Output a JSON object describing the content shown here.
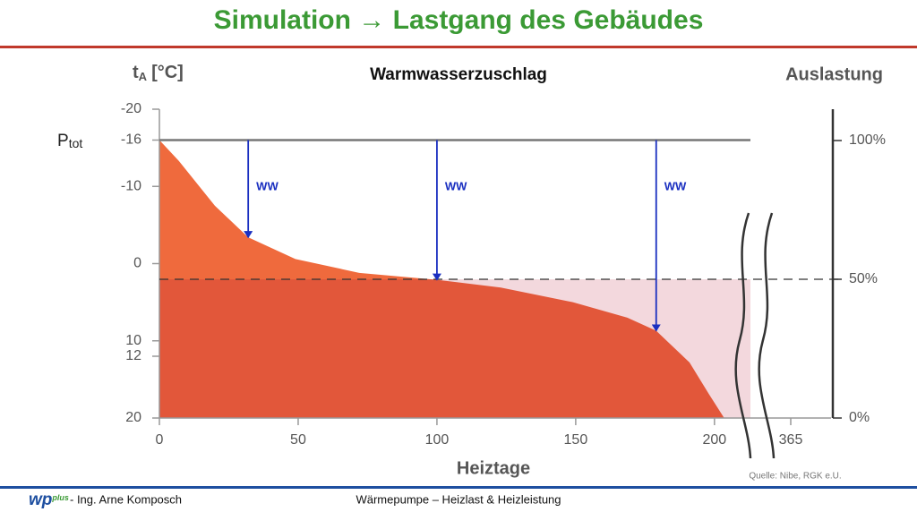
{
  "slide_title": "Simulation → Lastgang des Gebäudes",
  "footer": {
    "logo_main": "wp",
    "logo_sub": "plus",
    "author": "- Ing. Arne Komposch",
    "topic": "Wärmepumpe – Heizlast & Heizleistung",
    "source": "Quelle: Nibe, RGK e.U."
  },
  "chart_data": {
    "type": "area",
    "title": "Warmwasserzuschlag",
    "ylabel": [
      "t",
      "A",
      "[°C]"
    ],
    "y2label": "Auslastung",
    "xlabel": "Heiztage",
    "ptot_label": [
      "P",
      "tot"
    ],
    "x": [
      0,
      7,
      20,
      32,
      49,
      72,
      100,
      123,
      149,
      168.6,
      179,
      191,
      198,
      203.5
    ],
    "values": [
      -16,
      -13.3,
      -7.5,
      -3.4,
      -0.6,
      1.2,
      2.1,
      3.1,
      5,
      7,
      8.7,
      12.8,
      16.9,
      20
    ],
    "color": "#e2573a",
    "color_above_half": "#ef6a3d",
    "xlim": [
      0,
      242
    ],
    "xticks": [
      0,
      50,
      100,
      150,
      200,
      365
    ],
    "axis_break": true,
    "ylim": [
      20,
      -20
    ],
    "yticks": [
      -20,
      -16,
      -10,
      0,
      10,
      12,
      20
    ],
    "y2lim": [
      0,
      111.29
    ],
    "y2ticks": [
      {
        "value": 100,
        "label": "100%"
      },
      {
        "value": 50,
        "label": "50%"
      },
      {
        "value": 0,
        "label": "0%"
      }
    ],
    "arrows": [
      {
        "label": "WW",
        "x": 32,
        "y": -3.4
      },
      {
        "label": "WW",
        "x": 100,
        "y": 2.1
      },
      {
        "label": "WW",
        "x": 179,
        "y": 8.7
      }
    ],
    "arrow_color": "#1a2fc0"
  }
}
